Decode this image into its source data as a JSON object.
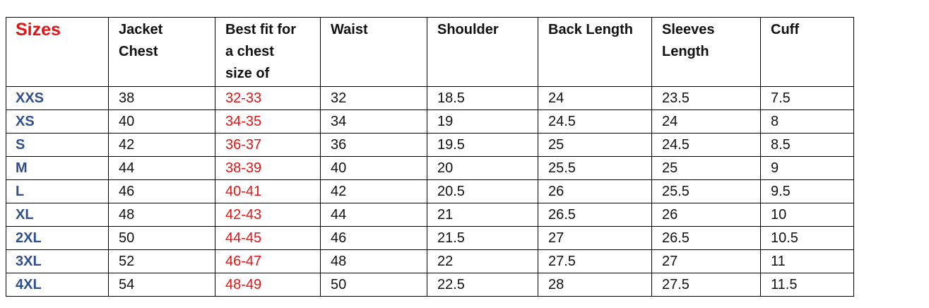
{
  "colors": {
    "red": "#e01515",
    "blue": "#2e4f8c"
  },
  "headers": [
    "Sizes",
    "Jacket\nChest",
    "Best fit for\na chest\nsize of",
    "Waist",
    "Shoulder",
    "Back Length",
    "Sleeves\nLength",
    "Cuff"
  ],
  "rows": [
    [
      "XXS",
      "38",
      "32-33",
      "32",
      "18.5",
      "24",
      "23.5",
      "7.5"
    ],
    [
      "XS",
      "40",
      "34-35",
      "34",
      "19",
      "24.5",
      "24",
      "8"
    ],
    [
      "S",
      "42",
      "36-37",
      "36",
      "19.5",
      "25",
      "24.5",
      "8.5"
    ],
    [
      "M",
      "44",
      "38-39",
      "40",
      "20",
      "25.5",
      "25",
      "9"
    ],
    [
      "L",
      "46",
      "40-41",
      "42",
      "20.5",
      "26",
      "25.5",
      "9.5"
    ],
    [
      "XL",
      "48",
      "42-43",
      "44",
      "21",
      "26.5",
      "26",
      "10"
    ],
    [
      "2XL",
      "50",
      "44-45",
      "46",
      "21.5",
      "27",
      "26.5",
      "10.5"
    ],
    [
      "3XL",
      "52",
      "46-47",
      "48",
      "22",
      "27.5",
      "27",
      "11"
    ],
    [
      "4XL",
      "54",
      "48-49",
      "50",
      "22.5",
      "28",
      "27.5",
      "11.5"
    ]
  ]
}
